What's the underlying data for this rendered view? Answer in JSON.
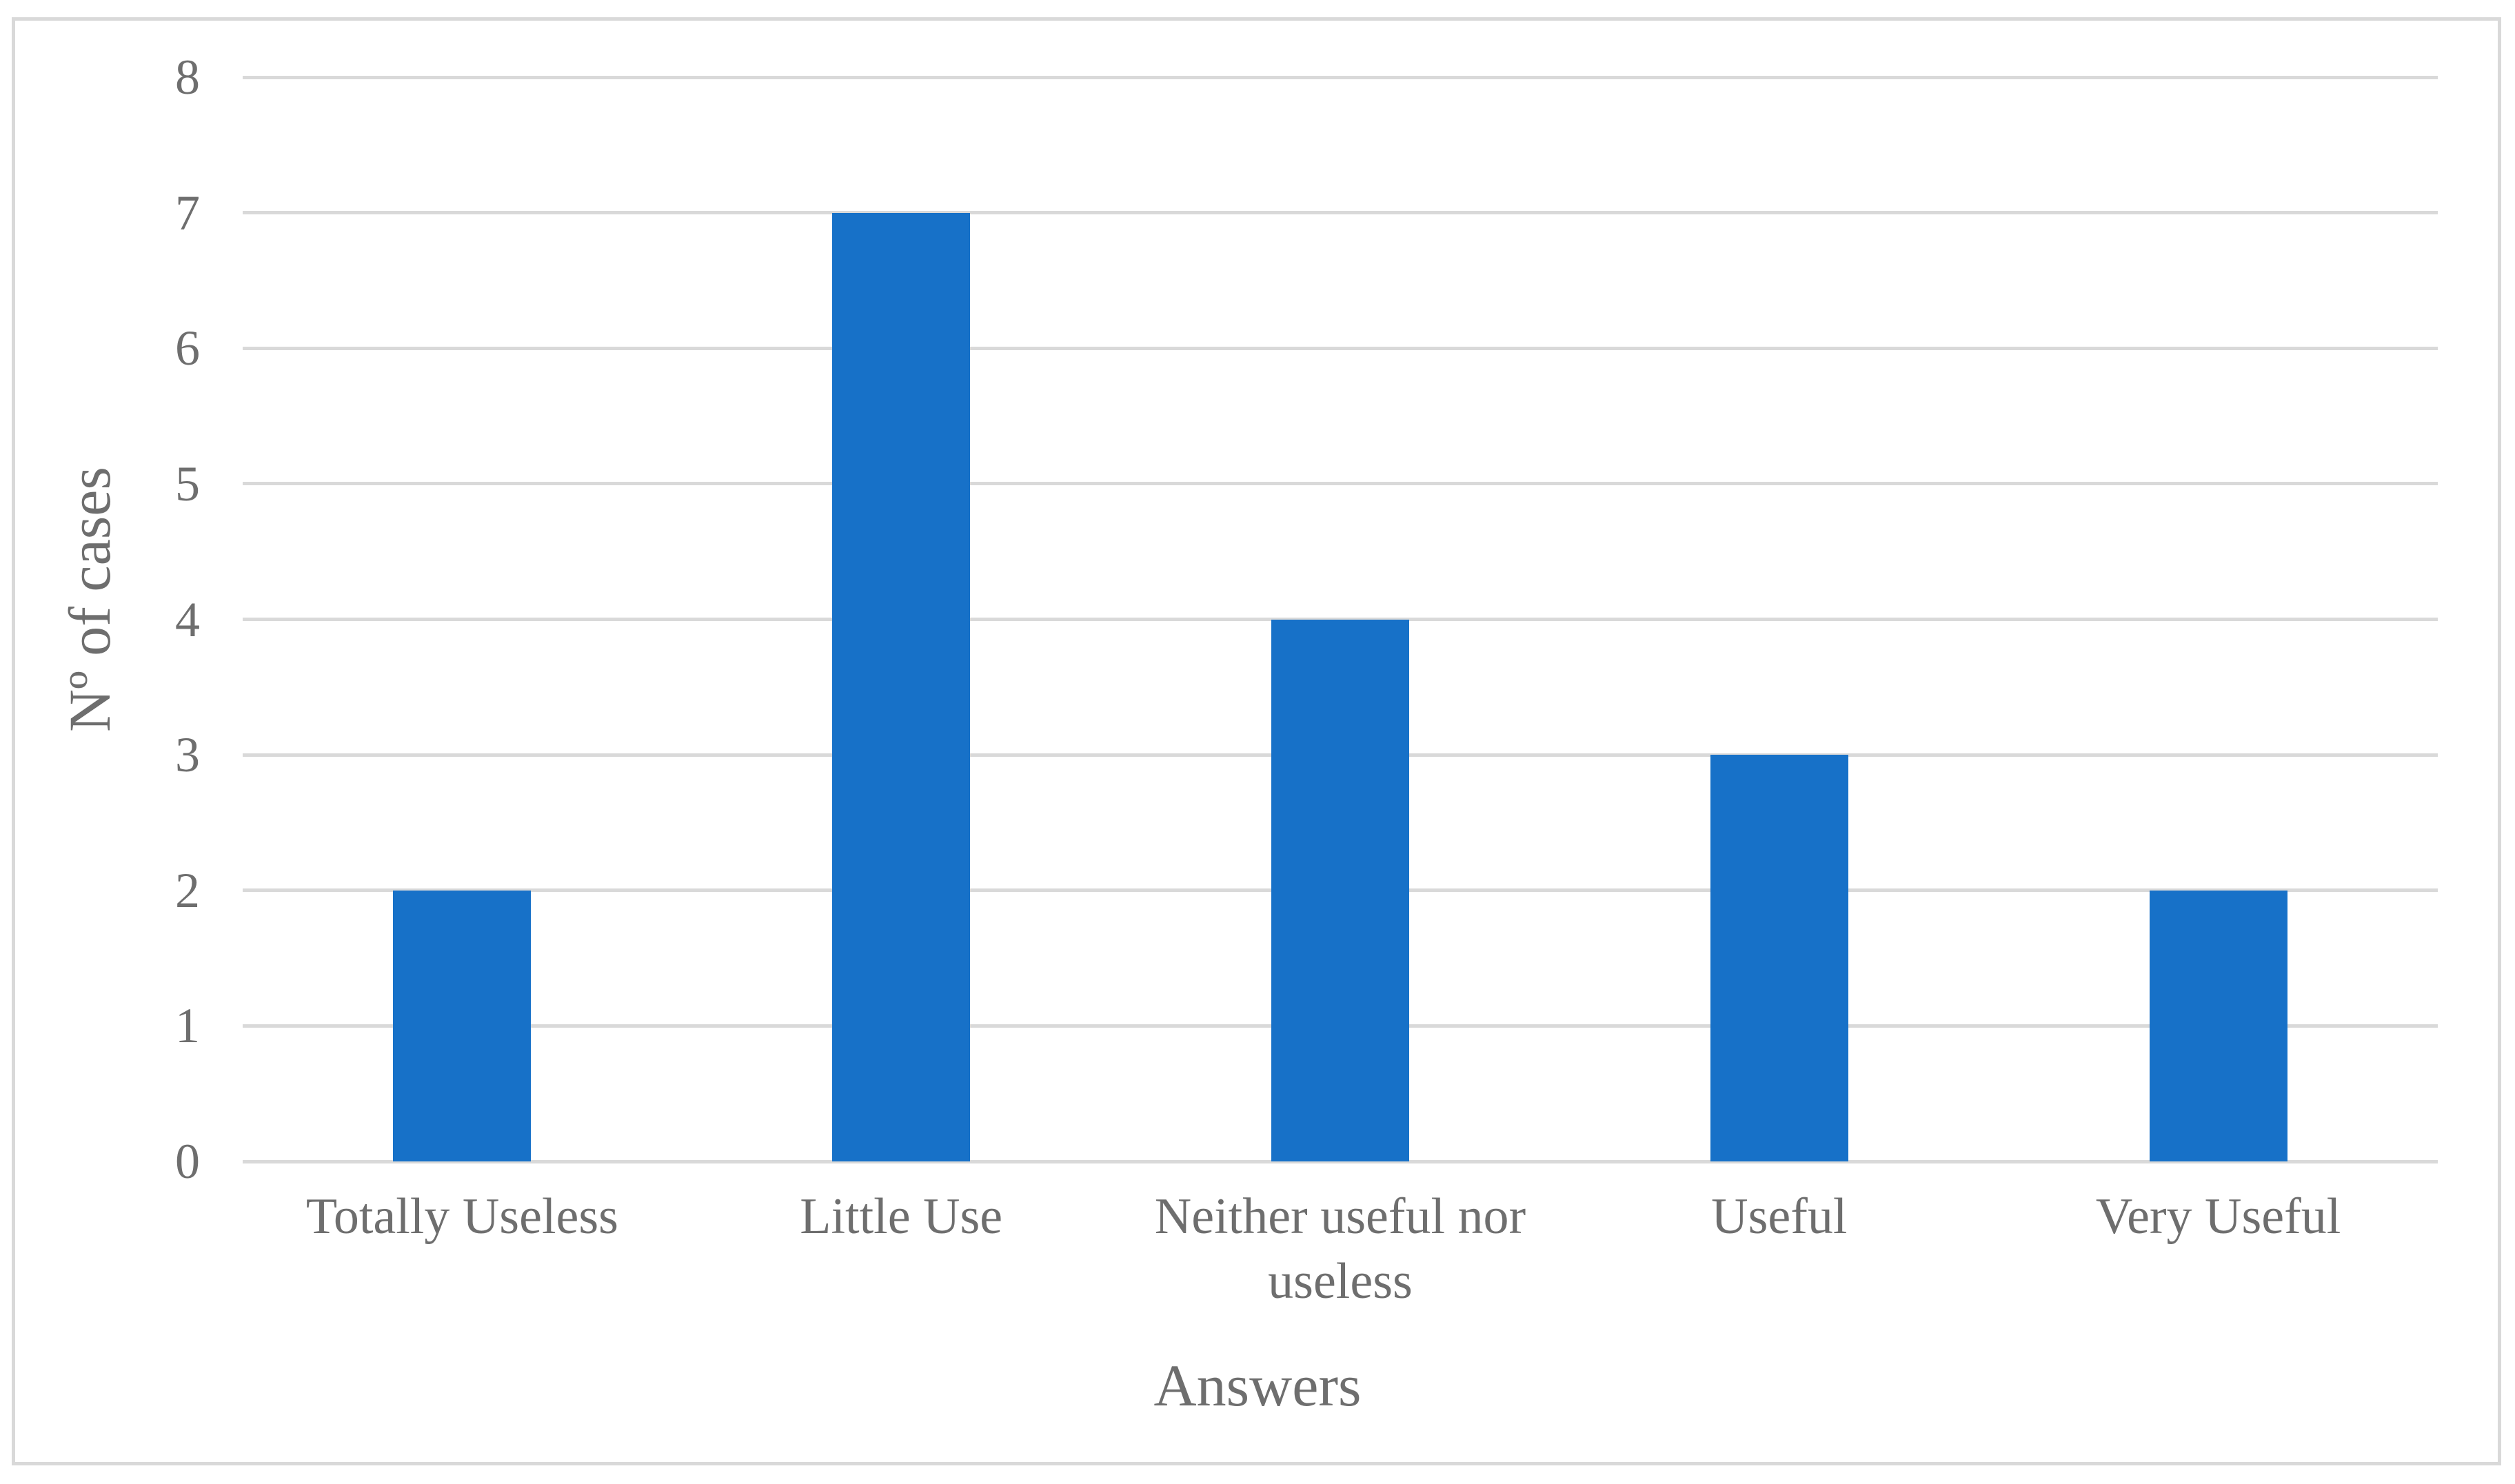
{
  "chart_data": {
    "type": "bar",
    "categories": [
      "Totally Useless",
      "Little Use",
      "Neither useful nor useless",
      "Useful",
      "Very Useful"
    ],
    "values": [
      2,
      7,
      4,
      3,
      2
    ],
    "title": "",
    "xlabel": "Answers",
    "ylabel": "Nº of cases",
    "ylim": [
      0,
      8
    ],
    "yticks": [
      0,
      1,
      2,
      3,
      4,
      5,
      6,
      7,
      8
    ],
    "grid": "horizontal",
    "legend": "none",
    "colors": {
      "bar": "#1771C8",
      "gridline": "#D9D9D9",
      "frame_border": "#D9D9D9",
      "text": "#6E6E6E",
      "background": "#FFFFFF"
    }
  }
}
